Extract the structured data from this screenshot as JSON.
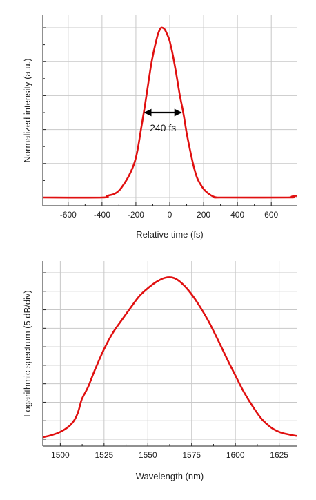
{
  "chart_data": [
    {
      "type": "line",
      "title": "",
      "xlabel": "Relative time (fs)",
      "ylabel": "Normalized intensity (a.u.)",
      "xlim": [
        -750,
        750
      ],
      "ylim": [
        0,
        1
      ],
      "x_ticks": [
        -600,
        -400,
        -200,
        0,
        200,
        400,
        600
      ],
      "y_ticks_labeled": false,
      "grid": true,
      "line_color": "#e01010",
      "annotation": {
        "text": "240 fs",
        "x_start": -160,
        "x_end": 80,
        "y": 0.5
      },
      "series": [
        {
          "x": [
            -750,
            -400,
            -370,
            -330,
            -300,
            -270,
            -240,
            -210,
            -190,
            -170,
            -150,
            -130,
            -110,
            -90,
            -70,
            -55,
            -45,
            -30,
            -15,
            0,
            20,
            40,
            60,
            80,
            100,
            120,
            140,
            160,
            180,
            200,
            220,
            240,
            260,
            280,
            300,
            700,
            720,
            740,
            750
          ],
          "y": [
            0,
            0,
            0.01,
            0.02,
            0.04,
            0.08,
            0.13,
            0.2,
            0.28,
            0.4,
            0.52,
            0.65,
            0.78,
            0.88,
            0.96,
            0.995,
            1.0,
            0.99,
            0.96,
            0.92,
            0.83,
            0.72,
            0.6,
            0.5,
            0.38,
            0.28,
            0.19,
            0.12,
            0.08,
            0.05,
            0.03,
            0.015,
            0.005,
            0,
            0,
            0,
            0.005,
            0.01,
            0.008
          ]
        }
      ]
    },
    {
      "type": "line",
      "title": "",
      "xlabel": "Wavelength (nm)",
      "ylabel": "Logarithmic spectrum (5 dB/div)",
      "xlim": [
        1490,
        1635
      ],
      "ylim": [
        -41,
        0
      ],
      "x_ticks": [
        1500,
        1525,
        1550,
        1575,
        1600,
        1625
      ],
      "y_ticks_labeled": false,
      "grid": true,
      "line_color": "#e01010",
      "series": [
        {
          "x": [
            1490,
            1495,
            1500,
            1505,
            1508,
            1510,
            1512,
            1513,
            1514,
            1516,
            1518,
            1520,
            1525,
            1530,
            1535,
            1540,
            1545,
            1550,
            1555,
            1560,
            1565,
            1570,
            1575,
            1580,
            1585,
            1590,
            1595,
            1600,
            1605,
            1610,
            1615,
            1620,
            1625,
            1630,
            1635
          ],
          "y": [
            -40.5,
            -40,
            -39.2,
            -37.8,
            -36.3,
            -34.5,
            -31.5,
            -30.5,
            -29.7,
            -28,
            -25.8,
            -23.7,
            -18.8,
            -14.8,
            -11.7,
            -8.7,
            -5.8,
            -3.8,
            -2.2,
            -1.2,
            -1.3,
            -2.8,
            -5.3,
            -8.5,
            -12.2,
            -16.5,
            -21,
            -25.3,
            -29.5,
            -33,
            -36,
            -38,
            -39.2,
            -39.8,
            -40.2
          ]
        }
      ]
    }
  ]
}
